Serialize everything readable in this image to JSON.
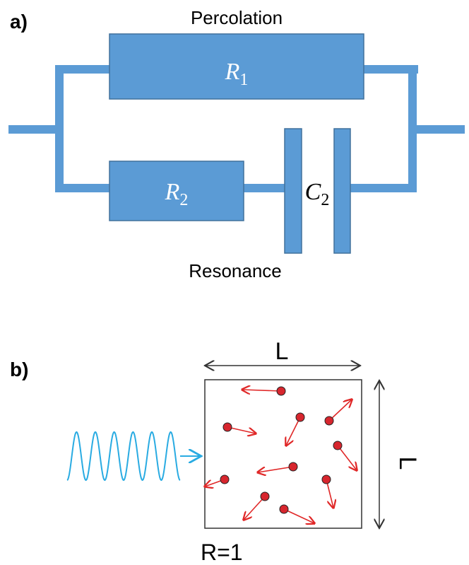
{
  "panel_a": {
    "label": "a)",
    "top_label": "Percolation",
    "bottom_label": "Resonance",
    "components": [
      {
        "symbol": "R",
        "subscript": "1"
      },
      {
        "symbol": "R",
        "subscript": "2"
      },
      {
        "symbol": "C",
        "subscript": "2"
      }
    ]
  },
  "panel_b": {
    "label": "b)",
    "width_label": "L",
    "height_label": "L",
    "radius_label": "R=1"
  }
}
